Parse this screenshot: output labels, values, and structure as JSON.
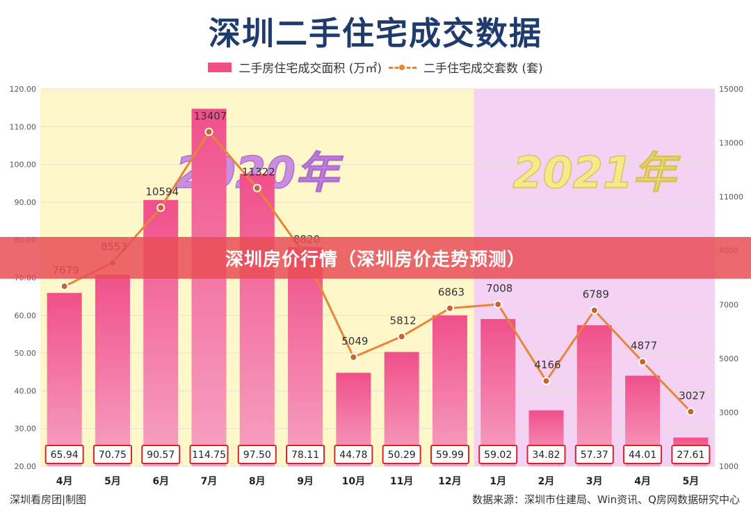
{
  "title": "深圳二手住宅成交数据",
  "banner": "深圳房价行情（深圳房价走势预测）",
  "footer": {
    "left": "深圳看房团|制图",
    "right": "数据来源：深圳市住建局、Win资讯、Q房网数据研究中心"
  },
  "colors": {
    "bar": "#ef4f86",
    "line": "#e8843a",
    "bg_2020": "#fdf7c9",
    "bg_2021": "#f3d2f4"
  },
  "chart_data": {
    "type": "bar",
    "categories": [
      "4月",
      "5月",
      "6月",
      "7月",
      "8月",
      "9月",
      "10月",
      "11月",
      "12月",
      "1月",
      "2月",
      "3月",
      "4月",
      "5月"
    ],
    "periods": [
      {
        "label": "2020年",
        "start_index": 0,
        "end_index": 8
      },
      {
        "label": "2021年",
        "start_index": 9,
        "end_index": 13
      }
    ],
    "series": [
      {
        "name": "二手房住宅成交面积 (万㎡)",
        "type": "bar",
        "axis": "left",
        "values": [
          65.94,
          70.75,
          90.57,
          114.75,
          97.5,
          78.11,
          44.78,
          50.29,
          59.99,
          59.02,
          34.82,
          57.37,
          44.01,
          27.61
        ],
        "value_labels": [
          "65.94",
          "70.75",
          "90.57",
          "114.75",
          "97.50",
          "78.11",
          "44.78",
          "50.29",
          "59.99",
          "59.02",
          "34.82",
          "57.37",
          "44.01",
          "27.61"
        ]
      },
      {
        "name": "二手住宅成交套数 (套)",
        "type": "line",
        "axis": "right",
        "values": [
          7679,
          8553,
          10594,
          13407,
          11322,
          8820,
          5049,
          5812,
          6863,
          7008,
          4166,
          6789,
          4877,
          3027
        ]
      }
    ],
    "y_left": {
      "ylim": [
        20,
        120
      ],
      "ticks": [
        "20.00",
        "30.00",
        "40.00",
        "50.00",
        "60.00",
        "70.00",
        "80.00",
        "90.00",
        "100.00",
        "110.00",
        "120.00"
      ]
    },
    "y_right": {
      "ylim": [
        1000,
        15000
      ],
      "ticks": [
        "1000",
        "3000",
        "5000",
        "7000",
        "9000",
        "11000",
        "13000",
        "15000"
      ]
    },
    "grid": true,
    "legend": "top-center"
  }
}
